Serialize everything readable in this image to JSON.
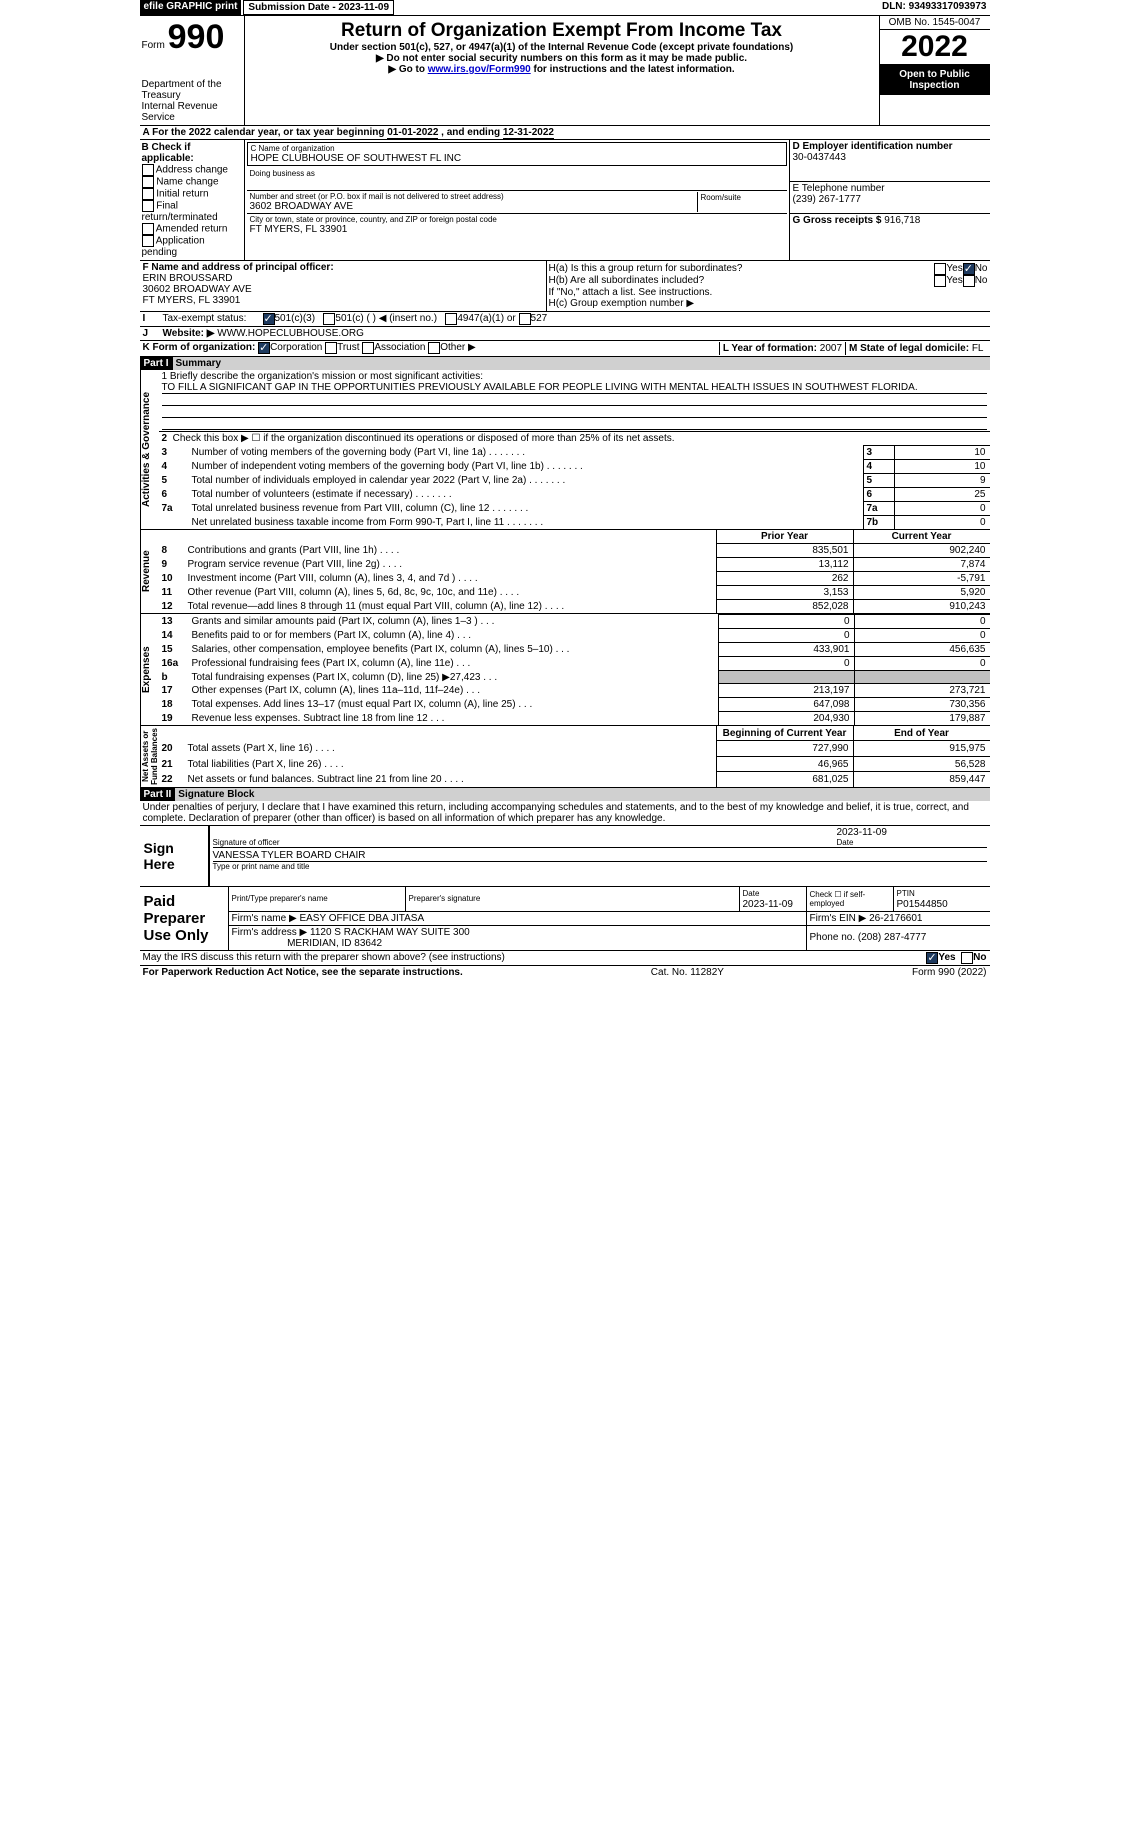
{
  "top": {
    "efile": "efile GRAPHIC print",
    "sub_label": "Submission Date - 2023-11-09",
    "dln": "DLN: 93493317093973"
  },
  "hdr": {
    "form_word": "Form",
    "form_num": "990",
    "dept": "Department of the Treasury",
    "irs": "Internal Revenue Service",
    "title": "Return of Organization Exempt From Income Tax",
    "sub": "Under section 501(c), 527, or 4947(a)(1) of the Internal Revenue Code (except private foundations)",
    "note1": "▶ Do not enter social security numbers on this form as it may be made public.",
    "note2_pre": "▶ Go to ",
    "note2_link": "www.irs.gov/Form990",
    "note2_post": " for instructions and the latest information.",
    "omb": "OMB No. 1545-0047",
    "year": "2022",
    "open": "Open to Public Inspection"
  },
  "A": {
    "label": "A For the 2022 calendar year, or tax year beginning ",
    "begin": "01-01-2022",
    "mid": " , and ending ",
    "end": "12-31-2022"
  },
  "B": {
    "label": "B Check if applicable:",
    "opts": [
      "Address change",
      "Name change",
      "Initial return",
      "Final return/terminated",
      "Amended return",
      "Application pending"
    ]
  },
  "C": {
    "name_lbl": "C Name of organization",
    "name": "HOPE CLUBHOUSE OF SOUTHWEST FL INC",
    "dba_lbl": "Doing business as",
    "addr_lbl": "Number and street (or P.O. box if mail is not delivered to street address)",
    "room_lbl": "Room/suite",
    "addr": "3602 BROADWAY AVE",
    "city_lbl": "City or town, state or province, country, and ZIP or foreign postal code",
    "city": "FT MYERS, FL  33901"
  },
  "D": {
    "lbl": "D Employer identification number",
    "val": "30-0437443"
  },
  "E": {
    "lbl": "E Telephone number",
    "val": "(239) 267-1777"
  },
  "G": {
    "lbl": "G Gross receipts $",
    "val": "916,718"
  },
  "F": {
    "lbl": "F  Name and address of principal officer:",
    "name": "ERIN BROUSSARD",
    "addr": "30602 BROADWAY AVE",
    "city": "FT MYERS, FL  33901"
  },
  "H": {
    "a": "H(a)  Is this a group return for subordinates?",
    "b": "H(b)  Are all subordinates included?",
    "b_note": "If \"No,\" attach a list. See instructions.",
    "c": "H(c)  Group exemption number ▶",
    "yes": "Yes",
    "no": "No"
  },
  "I": {
    "lbl": "Tax-exempt status:",
    "c3": "501(c)(3)",
    "c": "501(c) (  ) ◀ (insert no.)",
    "a": "4947(a)(1) or",
    "s": "527"
  },
  "J": {
    "lbl": "Website: ▶",
    "val": "WWW.HOPECLUBHOUSE.ORG"
  },
  "K": {
    "lbl": "K Form of organization:",
    "corp": "Corporation",
    "trust": "Trust",
    "assoc": "Association",
    "other": "Other ▶"
  },
  "L": {
    "lbl": "L Year of formation:",
    "val": "2007"
  },
  "M": {
    "lbl": "M State of legal domicile:",
    "val": "FL"
  },
  "part1": {
    "title": "Part I",
    "name": "Summary"
  },
  "s1": {
    "11": "1  Briefly describe the organization's mission or most significant activities:",
    "mission": "TO FILL A SIGNIFICANT GAP IN THE OPPORTUNITIES PREVIOUSLY AVAILABLE FOR PEOPLE LIVING WITH MENTAL HEALTH ISSUES IN SOUTHWEST FLORIDA.",
    "2": "Check this box ▶ ☐  if the organization discontinued its operations or disposed of more than 25% of its net assets.",
    "3": "Number of voting members of the governing body (Part VI, line 1a)",
    "4": "Number of independent voting members of the governing body (Part VI, line 1b)",
    "5": "Total number of individuals employed in calendar year 2022 (Part V, line 2a)",
    "6": "Total number of volunteers (estimate if necessary)",
    "7a": "Total unrelated business revenue from Part VIII, column (C), line 12",
    "7b": "Net unrelated business taxable income from Form 990-T, Part I, line 11"
  },
  "vals": {
    "3": "10",
    "4": "10",
    "5": "9",
    "6": "25",
    "7a": "0",
    "7b": "0"
  },
  "sideLabels": {
    "ag": "Activities & Governance",
    "rev": "Revenue",
    "exp": "Expenses",
    "na": "Net Assets or\nFund Balances"
  },
  "colH": {
    "prior": "Prior Year",
    "curr": "Current Year",
    "begin": "Beginning of Current Year",
    "end": "End of Year"
  },
  "rows": [
    {
      "n": "8",
      "t": "Contributions and grants (Part VIII, line 1h)",
      "p": "835,501",
      "c": "902,240"
    },
    {
      "n": "9",
      "t": "Program service revenue (Part VIII, line 2g)",
      "p": "13,112",
      "c": "7,874"
    },
    {
      "n": "10",
      "t": "Investment income (Part VIII, column (A), lines 3, 4, and 7d )",
      "p": "262",
      "c": "-5,791"
    },
    {
      "n": "11",
      "t": "Other revenue (Part VIII, column (A), lines 5, 6d, 8c, 9c, 10c, and 11e)",
      "p": "3,153",
      "c": "5,920"
    },
    {
      "n": "12",
      "t": "Total revenue—add lines 8 through 11 (must equal Part VIII, column (A), line 12)",
      "p": "852,028",
      "c": "910,243"
    },
    {
      "n": "13",
      "t": "Grants and similar amounts paid (Part IX, column (A), lines 1–3 )",
      "p": "0",
      "c": "0"
    },
    {
      "n": "14",
      "t": "Benefits paid to or for members (Part IX, column (A), line 4)",
      "p": "0",
      "c": "0"
    },
    {
      "n": "15",
      "t": "Salaries, other compensation, employee benefits (Part IX, column (A), lines 5–10)",
      "p": "433,901",
      "c": "456,635"
    },
    {
      "n": "16a",
      "t": "Professional fundraising fees (Part IX, column (A), line 11e)",
      "p": "0",
      "c": "0"
    },
    {
      "n": "b",
      "t": "Total fundraising expenses (Part IX, column (D), line 25) ▶27,423",
      "p": "",
      "c": "",
      "grey": true
    },
    {
      "n": "17",
      "t": "Other expenses (Part IX, column (A), lines 11a–11d, 11f–24e)",
      "p": "213,197",
      "c": "273,721"
    },
    {
      "n": "18",
      "t": "Total expenses. Add lines 13–17 (must equal Part IX, column (A), line 25)",
      "p": "647,098",
      "c": "730,356"
    },
    {
      "n": "19",
      "t": "Revenue less expenses. Subtract line 18 from line 12",
      "p": "204,930",
      "c": "179,887"
    }
  ],
  "rows2": [
    {
      "n": "20",
      "t": "Total assets (Part X, line 16)",
      "p": "727,990",
      "c": "915,975"
    },
    {
      "n": "21",
      "t": "Total liabilities (Part X, line 26)",
      "p": "46,965",
      "c": "56,528"
    },
    {
      "n": "22",
      "t": "Net assets or fund balances. Subtract line 21 from line 20",
      "p": "681,025",
      "c": "859,447"
    }
  ],
  "part2": {
    "title": "Part II",
    "name": "Signature Block"
  },
  "decl": "Under penalties of perjury, I declare that I have examined this return, including accompanying schedules and statements, and to the best of my knowledge and belief, it is true, correct, and complete. Declaration of preparer (other than officer) is based on all information of which preparer has any knowledge.",
  "sign": {
    "here": "Sign Here",
    "sig": "Signature of officer",
    "date_lbl": "Date",
    "date": "2023-11-09",
    "name": "VANESSA TYLER  BOARD CHAIR",
    "name_lbl": "Type or print name and title"
  },
  "prep": {
    "title": "Paid Preparer Use Only",
    "pn": "Print/Type preparer's name",
    "ps": "Preparer's signature",
    "dl": "Date",
    "dv": "2023-11-09",
    "chk": "Check ☐ if self-employed",
    "ptin_l": "PTIN",
    "ptin": "P01544850",
    "fn": "Firm's name    ▶",
    "fnv": "EASY OFFICE DBA JITASA",
    "fein": "Firm's EIN ▶",
    "feinv": "26-2176601",
    "fa": "Firm's address ▶",
    "fav": "1120 S RACKHAM WAY SUITE 300",
    "fac": "MERIDIAN, ID  83642",
    "ph": "Phone no.",
    "phv": "(208) 287-4777"
  },
  "bottom": {
    "q": "May the IRS discuss this return with the preparer shown above? (see instructions)",
    "yes": "Yes",
    "no": "No",
    "pw": "For Paperwork Reduction Act Notice, see the separate instructions.",
    "cat": "Cat. No. 11282Y",
    "form": "Form 990 (2022)"
  }
}
